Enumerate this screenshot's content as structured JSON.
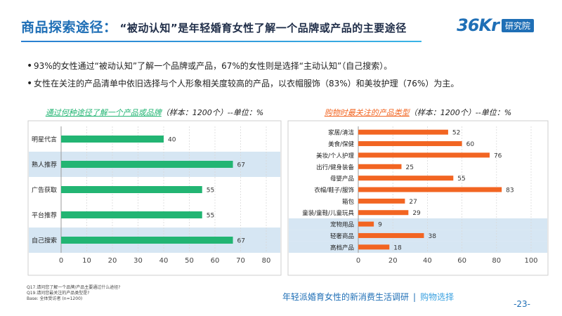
{
  "header": {
    "title": "商品探索途径：",
    "subtitle": "“被动认知”是年轻婚育女性了解一个品牌或产品的主要途径",
    "logo_mark": "36Kr",
    "logo_tag": "研究院"
  },
  "bullets": [
    "93%的女性通过“被动认知”了解一个品牌或产品，67%的女性则是选择“主动认知”（自己搜索）。",
    "女性在关注的产品清单中依旧选择与个人形象相关度较高的产品，以衣帽服饰（83%）和美妆护理（76%）为主。"
  ],
  "chart_titles": [
    {
      "highlight": "通过何种途径了解一个产品或品牌",
      "rest": "（样本：1200个）--单位：%"
    },
    {
      "highlight": "购物时最关注的产品类型",
      "rest": "（样本：1200个）--单位：%"
    }
  ],
  "chart_data": [
    {
      "type": "bar",
      "orientation": "horizontal",
      "categories": [
        "明星代言",
        "熟人推荐",
        "广告获取",
        "平台推荐",
        "自己搜索"
      ],
      "values": [
        40,
        67,
        55,
        55,
        67
      ],
      "xlim": [
        0,
        80
      ],
      "xticks": [
        0,
        10,
        20,
        30,
        40,
        50,
        60,
        70,
        80
      ],
      "highlighted_categories": [
        "熟人推荐",
        "自己搜索"
      ],
      "grid": true,
      "bar_color": "#22b573",
      "highlight_color": "#d6e6f3"
    },
    {
      "type": "bar",
      "orientation": "horizontal",
      "categories": [
        "家居/清洁",
        "美食/保健",
        "美妆/个人护理",
        "出行/健身装备",
        "母婴产品",
        "衣帽/鞋子/服饰",
        "箱包",
        "童装/童鞋/儿童玩具",
        "宠物用品",
        "轻奢商品",
        "高档产品"
      ],
      "values": [
        52,
        60,
        76,
        25,
        55,
        83,
        27,
        29,
        9,
        38,
        18
      ],
      "xlim": [
        0,
        100
      ],
      "xticks": [
        0,
        20,
        40,
        60,
        80,
        100
      ],
      "highlighted_categories": [
        "宠物用品",
        "轻奢商品",
        "高档产品"
      ],
      "grid": true,
      "bar_color": "#f26522",
      "highlight_color": "#d6e6f3"
    }
  ],
  "notes": [
    "Q17.请问您了解一个品牌/产品主要通过什么途径?",
    "Q19.请问您最关注的产品类型是?",
    "Base: 全体受访者 (n=1200)"
  ],
  "footer": {
    "report": "年轻派婚育女性的新消费生活调研",
    "separator": "|",
    "section": "购物选择",
    "page": "-23-"
  },
  "colors": {
    "accent": "#1f6fb6",
    "grid": "#d9d9d9"
  }
}
